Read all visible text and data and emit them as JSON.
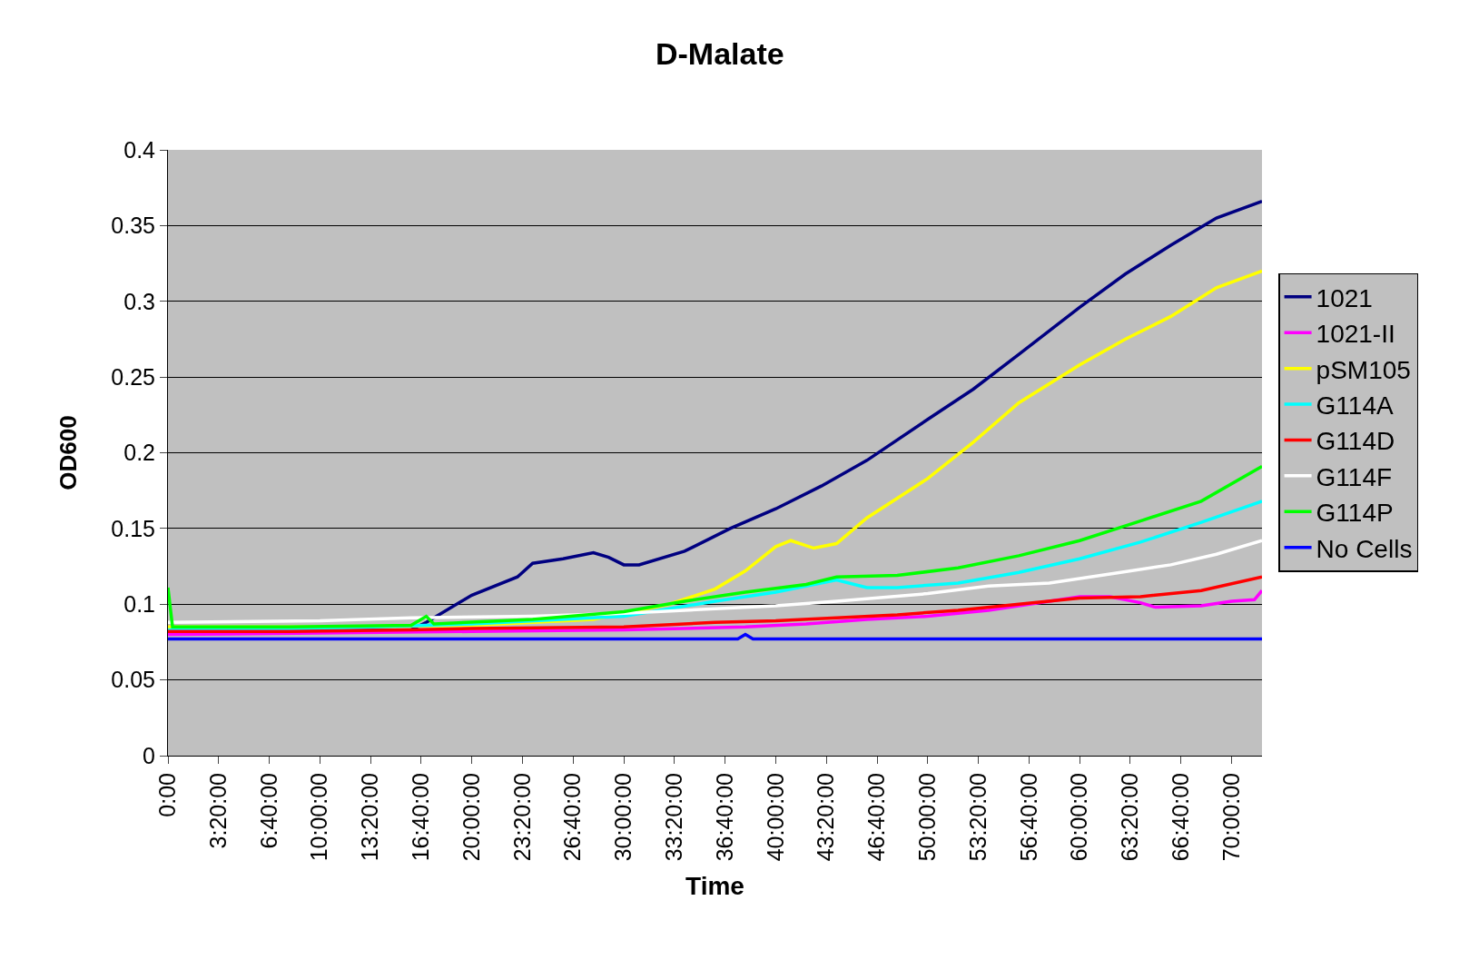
{
  "chart_data": {
    "type": "line",
    "title": "D-Malate",
    "xlabel": "Time",
    "ylabel": "OD600",
    "xlim": [
      0,
      72
    ],
    "ylim": [
      0,
      0.4
    ],
    "xticks": [
      {
        "value": 0,
        "label": "0:00"
      },
      {
        "value": 3.3333333333,
        "label": "3:20:00"
      },
      {
        "value": 6.6666666667,
        "label": "6:40:00"
      },
      {
        "value": 10,
        "label": "10:00:00"
      },
      {
        "value": 13.3333333333,
        "label": "13:20:00"
      },
      {
        "value": 16.6666666667,
        "label": "16:40:00"
      },
      {
        "value": 20,
        "label": "20:00:00"
      },
      {
        "value": 23.3333333333,
        "label": "23:20:00"
      },
      {
        "value": 26.6666666667,
        "label": "26:40:00"
      },
      {
        "value": 30,
        "label": "30:00:00"
      },
      {
        "value": 33.3333333333,
        "label": "33:20:00"
      },
      {
        "value": 36.6666666667,
        "label": "36:40:00"
      },
      {
        "value": 40,
        "label": "40:00:00"
      },
      {
        "value": 43.3333333333,
        "label": "43:20:00"
      },
      {
        "value": 46.6666666667,
        "label": "46:40:00"
      },
      {
        "value": 50,
        "label": "50:00:00"
      },
      {
        "value": 53.3333333333,
        "label": "53:20:00"
      },
      {
        "value": 56.6666666667,
        "label": "56:40:00"
      },
      {
        "value": 60,
        "label": "60:00:00"
      },
      {
        "value": 63.3333333333,
        "label": "63:20:00"
      },
      {
        "value": 66.6666666667,
        "label": "66:40:00"
      },
      {
        "value": 70,
        "label": "70:00:00"
      }
    ],
    "yticks": [
      0,
      0.05,
      0.1,
      0.15,
      0.2,
      0.25,
      0.3,
      0.35,
      0.4
    ],
    "grid": "y",
    "legend": "right",
    "marker": "none",
    "line_style": "solid",
    "series": [
      {
        "name": "1021",
        "color": "#000080",
        "x": [
          0,
          8,
          16,
          17,
          20,
          23,
          24,
          26,
          28,
          29,
          30,
          31,
          34,
          37,
          40,
          43,
          46,
          50,
          53,
          56,
          60,
          63,
          66,
          69,
          72
        ],
        "values": [
          0.082,
          0.082,
          0.083,
          0.088,
          0.106,
          0.118,
          0.127,
          0.13,
          0.134,
          0.131,
          0.126,
          0.126,
          0.135,
          0.15,
          0.163,
          0.178,
          0.195,
          0.222,
          0.242,
          0.265,
          0.296,
          0.318,
          0.337,
          0.355,
          0.366
        ]
      },
      {
        "name": "1021-II",
        "color": "#ff00ff",
        "x": [
          0,
          10,
          20,
          30,
          38,
          42,
          46,
          50,
          54,
          58,
          60,
          62,
          64,
          65,
          68,
          70,
          71.5,
          72
        ],
        "values": [
          0.08,
          0.081,
          0.082,
          0.083,
          0.085,
          0.087,
          0.09,
          0.092,
          0.096,
          0.102,
          0.105,
          0.105,
          0.101,
          0.098,
          0.099,
          0.102,
          0.103,
          0.109
        ]
      },
      {
        "name": "pSM105",
        "color": "#ffff00",
        "x": [
          0,
          10,
          20,
          28,
          33,
          36,
          38,
          40,
          41,
          42.5,
          44,
          46,
          50,
          53,
          56,
          60,
          63,
          66,
          69,
          72
        ],
        "values": [
          0.085,
          0.085,
          0.086,
          0.09,
          0.1,
          0.11,
          0.122,
          0.138,
          0.142,
          0.137,
          0.14,
          0.157,
          0.183,
          0.207,
          0.233,
          0.258,
          0.275,
          0.29,
          0.309,
          0.32
        ]
      },
      {
        "name": "G114A",
        "color": "#00ffff",
        "x": [
          0,
          10,
          20,
          30,
          36,
          40,
          44,
          46,
          48,
          52,
          56,
          60,
          64,
          68,
          72
        ],
        "values": [
          0.083,
          0.084,
          0.087,
          0.092,
          0.102,
          0.108,
          0.116,
          0.111,
          0.111,
          0.114,
          0.121,
          0.13,
          0.141,
          0.154,
          0.168
        ]
      },
      {
        "name": "G114D",
        "color": "#ff0000",
        "x": [
          0,
          8,
          16,
          20,
          30,
          36,
          40,
          44,
          48,
          52,
          56,
          60,
          64,
          68,
          72
        ],
        "values": [
          0.082,
          0.082,
          0.083,
          0.084,
          0.085,
          0.088,
          0.089,
          0.091,
          0.093,
          0.096,
          0.1,
          0.104,
          0.105,
          0.109,
          0.118
        ]
      },
      {
        "name": "G114F",
        "color": "#ffffff",
        "x": [
          0,
          10,
          16,
          24,
          30,
          36,
          40,
          44,
          50,
          54,
          58,
          62,
          66,
          69,
          72
        ],
        "values": [
          0.088,
          0.089,
          0.091,
          0.092,
          0.094,
          0.097,
          0.099,
          0.102,
          0.107,
          0.112,
          0.114,
          0.12,
          0.126,
          0.133,
          0.142
        ]
      },
      {
        "name": "G114P",
        "color": "#00ff00",
        "x": [
          0,
          0.3,
          8,
          16,
          17,
          17.5,
          24,
          30,
          34,
          38,
          42,
          44,
          48,
          52,
          56,
          60,
          64,
          68,
          72
        ],
        "values": [
          0.111,
          0.085,
          0.085,
          0.086,
          0.092,
          0.087,
          0.09,
          0.095,
          0.102,
          0.108,
          0.113,
          0.118,
          0.119,
          0.124,
          0.132,
          0.142,
          0.155,
          0.168,
          0.191
        ]
      },
      {
        "name": "No Cells",
        "color": "#0000ff",
        "x": [
          0,
          37.5,
          38,
          38.5,
          72
        ],
        "values": [
          0.077,
          0.077,
          0.08,
          0.077,
          0.077
        ]
      }
    ]
  }
}
